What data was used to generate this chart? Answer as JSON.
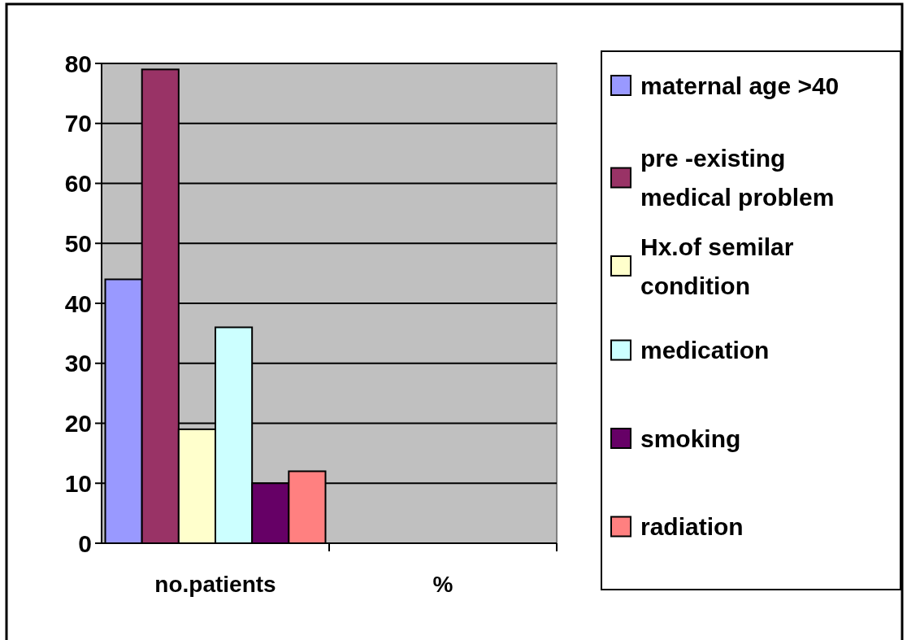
{
  "chart_data": {
    "type": "bar",
    "categories": [
      "no.patients",
      "%"
    ],
    "series": [
      {
        "name": "maternal age >40",
        "color": "#9999ff",
        "values": [
          44,
          null
        ]
      },
      {
        "name": "pre -existing medical problem",
        "color": "#993366",
        "values": [
          79,
          null
        ]
      },
      {
        "name": "Hx.of semilar condition",
        "color": "#ffffcc",
        "values": [
          19,
          null
        ]
      },
      {
        "name": "medication",
        "color": "#ccffff",
        "values": [
          36,
          null
        ]
      },
      {
        "name": "smoking",
        "color": "#660066",
        "values": [
          10,
          null
        ]
      },
      {
        "name": "radiation",
        "color": "#ff8080",
        "values": [
          12,
          null
        ]
      }
    ],
    "ylim": [
      0,
      80
    ],
    "yticks": [
      0,
      10,
      20,
      30,
      40,
      50,
      60,
      70,
      80
    ],
    "grid": "y",
    "legend": "right"
  }
}
